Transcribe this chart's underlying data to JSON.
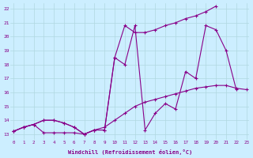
{
  "background_color": "#cceeff",
  "grid_color": "#b0d8e0",
  "line_color": "#880088",
  "xlabel": "Windchill (Refroidissement éolien,°C)",
  "ylabel_ticks": [
    13,
    14,
    15,
    16,
    17,
    18,
    19,
    20,
    21,
    22
  ],
  "xlabel_ticks": [
    0,
    1,
    2,
    3,
    4,
    5,
    6,
    7,
    8,
    9,
    10,
    11,
    12,
    13,
    14,
    15,
    16,
    17,
    18,
    19,
    20,
    21,
    22,
    23
  ],
  "xlim": [
    -0.3,
    23.3
  ],
  "ylim": [
    12.6,
    22.4
  ],
  "line1_x": [
    0,
    1,
    2,
    3,
    4,
    5,
    6,
    7,
    8,
    9,
    10,
    11,
    12,
    13,
    14,
    15,
    16,
    17,
    18,
    19,
    20,
    21,
    22
  ],
  "line1_y": [
    13.2,
    13.5,
    13.7,
    13.1,
    13.1,
    13.1,
    13.1,
    13.0,
    13.3,
    13.3,
    18.5,
    18.0,
    20.8,
    13.3,
    14.5,
    15.2,
    14.8,
    17.5,
    17.0,
    20.8,
    20.5,
    19.0,
    16.2
  ],
  "line2_x": [
    0,
    1,
    2,
    3,
    4,
    5,
    6,
    7,
    8,
    9,
    10,
    11,
    12,
    13,
    14,
    15,
    16,
    17,
    18,
    19,
    20,
    21,
    22
  ],
  "line2_y": [
    13.2,
    13.5,
    13.7,
    14.0,
    14.0,
    13.8,
    13.5,
    13.0,
    13.3,
    13.3,
    18.5,
    20.8,
    20.3,
    20.3,
    20.5,
    20.8,
    21.0,
    21.3,
    21.5,
    21.8,
    22.2,
    null,
    null
  ],
  "line3_x": [
    0,
    1,
    2,
    3,
    4,
    5,
    6,
    7,
    8,
    9,
    10,
    11,
    12,
    13,
    14,
    15,
    16,
    17,
    18,
    19,
    20,
    21,
    22,
    23
  ],
  "line3_y": [
    13.2,
    13.5,
    13.7,
    14.0,
    14.0,
    13.8,
    13.5,
    13.0,
    13.3,
    13.5,
    14.0,
    14.5,
    15.0,
    15.3,
    15.5,
    15.7,
    15.9,
    16.1,
    16.3,
    16.4,
    16.5,
    16.5,
    16.3,
    16.2
  ]
}
